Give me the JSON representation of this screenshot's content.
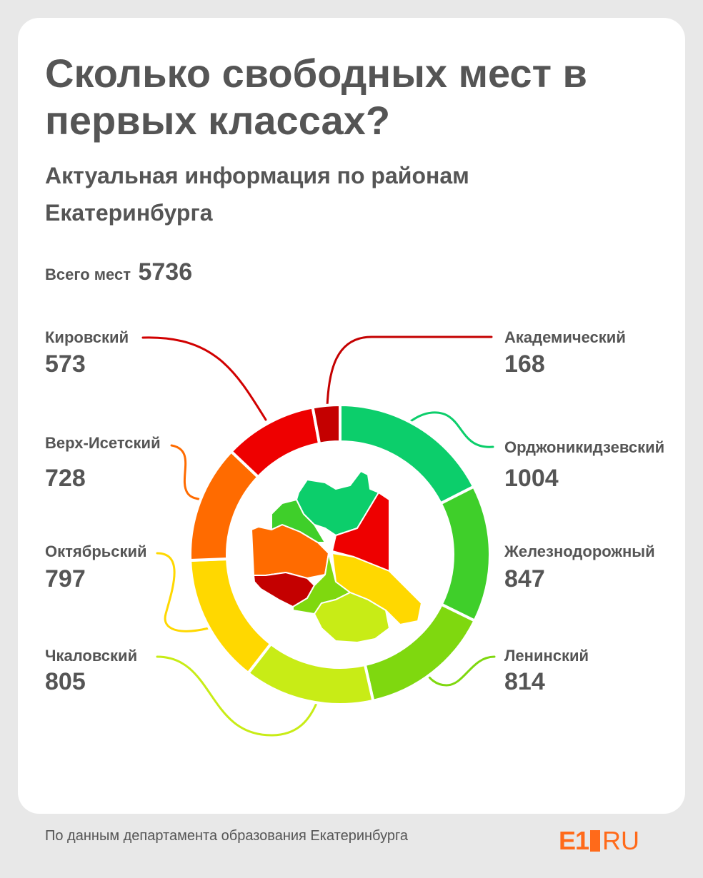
{
  "header": {
    "title": "Сколько свободных мест в первых классах?",
    "subtitle": "Актуальная информация по районам Екатеринбурга"
  },
  "total": {
    "label": "Всего мест",
    "value": "5736"
  },
  "chart_data": {
    "type": "pie",
    "donut": true,
    "order": "clockwise-from-top",
    "categories": [
      "Орджоникидзевский",
      "Железнодорожный",
      "Ленинский",
      "Чкаловский",
      "Октябрьский",
      "Верх-Исетский",
      "Кировский",
      "Академический"
    ],
    "values": [
      1004,
      847,
      814,
      805,
      797,
      728,
      573,
      168
    ],
    "colors": [
      "#0cce6b",
      "#3fcf2a",
      "#7fd80f",
      "#c8ec16",
      "#ffd800",
      "#ff6b00",
      "#ee0000",
      "#c40000"
    ],
    "total": 5736
  },
  "districts": [
    {
      "name": "Кировский",
      "value": "573"
    },
    {
      "name": "Академический",
      "value": "168"
    },
    {
      "name": "Верх-Исетский",
      "value": "728"
    },
    {
      "name": "Орджоникидзевский",
      "value": "1004"
    },
    {
      "name": "Октябрьский",
      "value": "797"
    },
    {
      "name": "Железнодорожный",
      "value": "847"
    },
    {
      "name": "Чкаловский",
      "value": "805"
    },
    {
      "name": "Ленинский",
      "value": "814"
    }
  ],
  "footer": {
    "source": "По данным департамента образования Екатеринбурга",
    "logo_e1": "E1",
    "logo_ru": "RU"
  }
}
